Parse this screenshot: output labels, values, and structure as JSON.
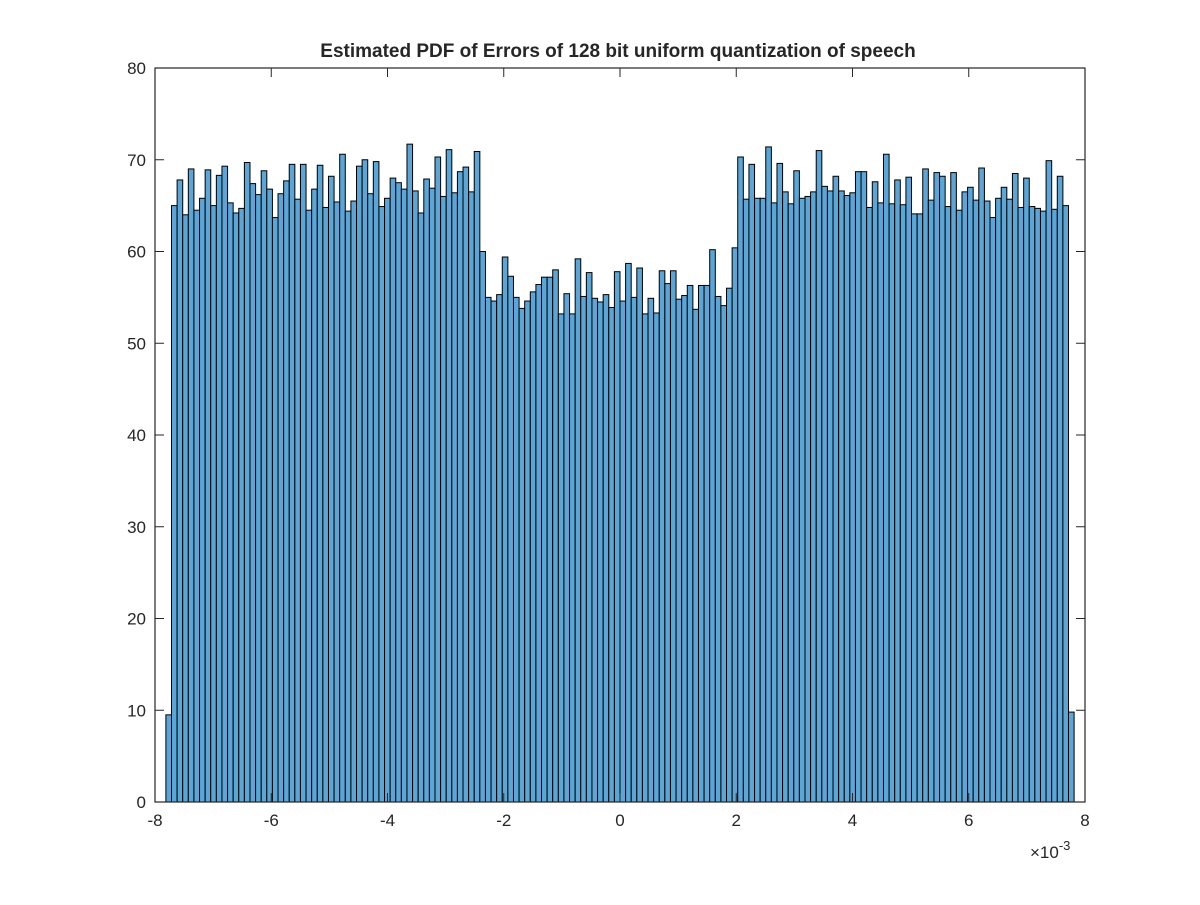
{
  "chart_data": {
    "type": "bar",
    "title": "Estimated PDF of Errors of 128 bit uniform quantization of speech",
    "xlabel": "",
    "ylabel": "",
    "xlim": [
      -8,
      8
    ],
    "ylim": [
      0,
      80
    ],
    "x_exponent_label": "×10",
    "x_exponent": "-3",
    "xticks": [
      "-8",
      "-6",
      "-4",
      "-2",
      "0",
      "2",
      "4",
      "6",
      "8"
    ],
    "yticks": [
      "0",
      "10",
      "20",
      "30",
      "40",
      "50",
      "60",
      "70",
      "80"
    ],
    "grid": false,
    "legend": "none",
    "bar_color": "#5ba6d6",
    "bin_range": [
      -7.8125,
      7.8125
    ],
    "values": [
      9.5,
      65.0,
      67.8,
      64.0,
      69.0,
      64.5,
      65.8,
      68.9,
      65.0,
      68.3,
      69.3,
      65.3,
      64.2,
      64.7,
      69.7,
      67.4,
      66.2,
      68.8,
      66.8,
      63.7,
      66.3,
      67.7,
      69.5,
      65.7,
      69.5,
      64.5,
      66.8,
      69.4,
      64.8,
      68.2,
      65.4,
      70.6,
      64.4,
      65.5,
      69.3,
      70.0,
      66.3,
      69.8,
      64.9,
      65.8,
      68.0,
      67.5,
      66.8,
      71.7,
      66.6,
      64.2,
      67.9,
      66.9,
      70.3,
      66.0,
      71.1,
      66.4,
      68.7,
      69.2,
      66.5,
      70.9,
      60.0,
      55.0,
      54.6,
      55.3,
      59.4,
      57.3,
      55.0,
      53.8,
      54.6,
      55.6,
      56.4,
      57.2,
      57.2,
      58.0,
      53.2,
      55.4,
      53.2,
      59.2,
      55.1,
      57.7,
      54.9,
      54.5,
      55.3,
      53.9,
      57.8,
      54.6,
      58.7,
      55.0,
      58.2,
      53.2,
      54.9,
      53.3,
      57.9,
      56.5,
      57.9,
      54.8,
      55.2,
      56.3,
      53.7,
      56.3,
      56.3,
      60.2,
      55.1,
      54.1,
      56.0,
      60.4,
      70.3,
      65.7,
      69.5,
      65.8,
      65.8,
      71.4,
      65.3,
      69.6,
      66.5,
      65.2,
      68.8,
      65.8,
      66.0,
      66.5,
      71.0,
      67.1,
      66.6,
      68.2,
      66.6,
      66.1,
      66.4,
      68.7,
      68.7,
      64.8,
      67.6,
      65.3,
      70.6,
      65.2,
      67.8,
      65.1,
      68.1,
      64.1,
      64.1,
      69.0,
      65.6,
      68.6,
      68.2,
      64.9,
      68.6,
      64.5,
      66.5,
      67.0,
      65.6,
      69.1,
      65.5,
      63.7,
      65.8,
      67.0,
      65.7,
      68.5,
      64.8,
      68.0,
      64.9,
      64.7,
      64.4,
      69.9,
      64.6,
      68.2,
      65.0,
      9.8
    ]
  }
}
